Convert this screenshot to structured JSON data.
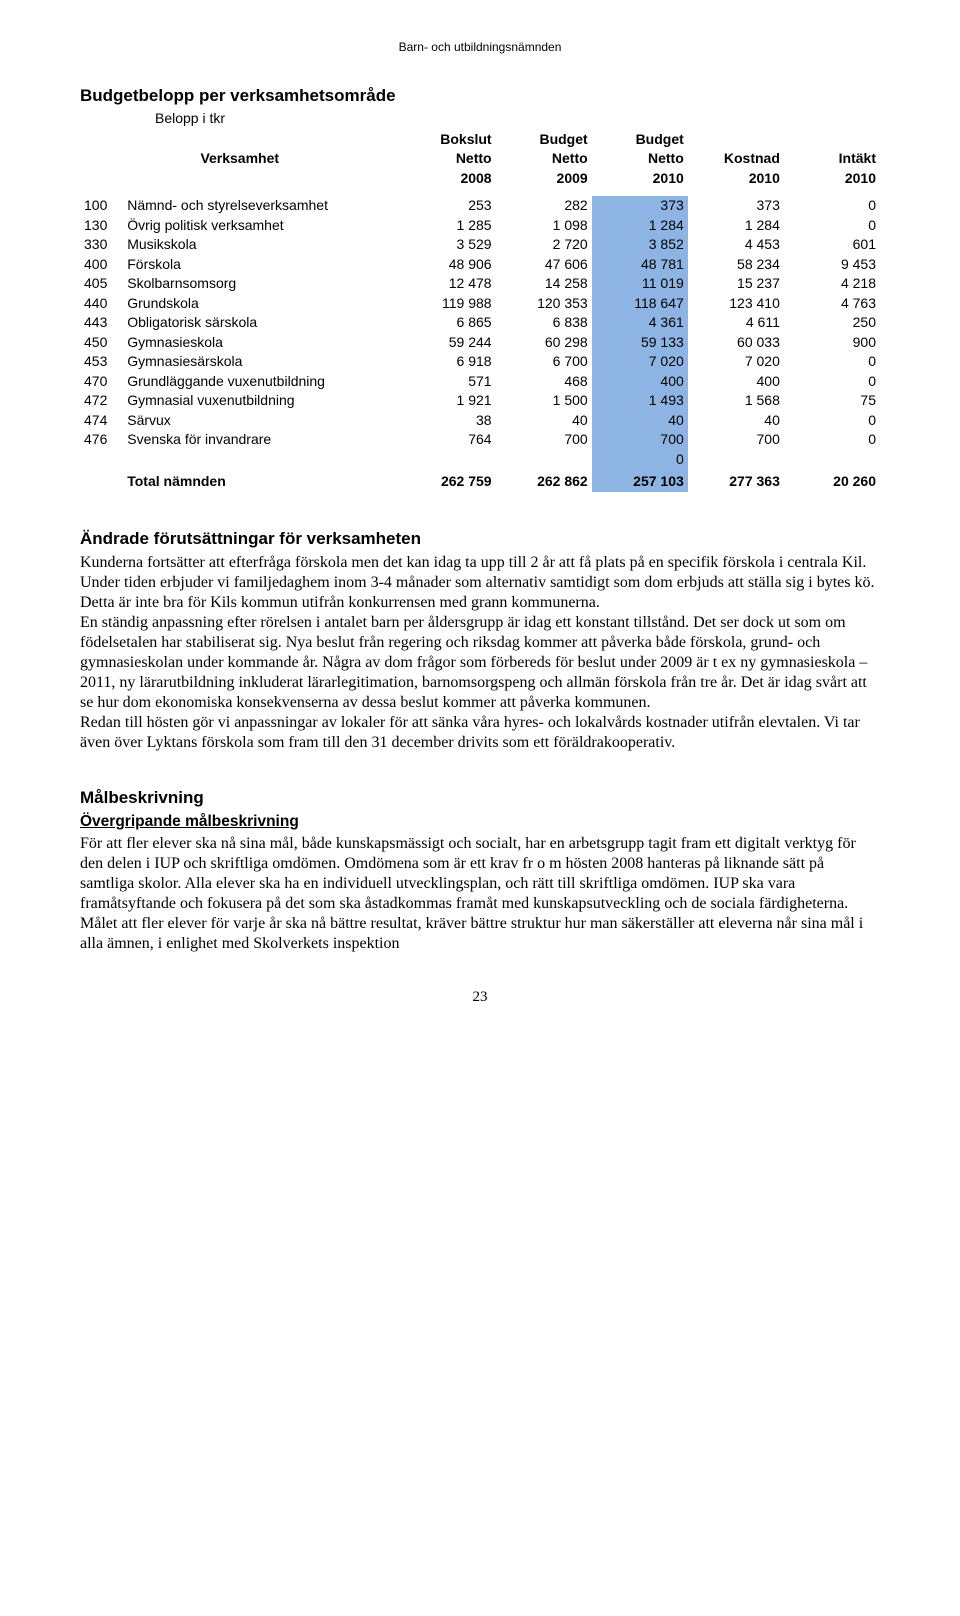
{
  "page_header": "Barn- och utbildningsnämnden",
  "budget_table": {
    "type": "table",
    "title": "Budgetbelopp per verksamhetsområde",
    "subtitle": "Belopp i tkr",
    "background_color": "#ffffff",
    "highlight_color": "#8eb4e3",
    "font_family": "Arial",
    "font_size_pt": 10.5,
    "header": {
      "row1": [
        "",
        "Bokslut",
        "Budget",
        "Budget",
        "",
        ""
      ],
      "row2": [
        "Verksamhet",
        "Netto",
        "Netto",
        "Netto",
        "Kostnad",
        "Intäkt"
      ],
      "row3": [
        "",
        "2008",
        "2009",
        "2010",
        "2010",
        "2010"
      ]
    },
    "columns": [
      "code",
      "label",
      "bokslut_netto_2008",
      "budget_netto_2009",
      "budget_netto_2010",
      "kostnad_2010",
      "intakt_2010"
    ],
    "highlight_column": "budget_netto_2010",
    "column_align": [
      "left",
      "left",
      "right",
      "right",
      "right",
      "right",
      "right"
    ],
    "rows": [
      [
        "100",
        "Nämnd- och styrelseverksamhet",
        "253",
        "282",
        "373",
        "373",
        "0"
      ],
      [
        "130",
        "Övrig politisk verksamhet",
        "1 285",
        "1 098",
        "1 284",
        "1 284",
        "0"
      ],
      [
        "330",
        "Musikskola",
        "3 529",
        "2 720",
        "3 852",
        "4 453",
        "601"
      ],
      [
        "400",
        "Förskola",
        "48 906",
        "47 606",
        "48 781",
        "58 234",
        "9 453"
      ],
      [
        "405",
        "Skolbarnsomsorg",
        "12 478",
        "14 258",
        "11 019",
        "15 237",
        "4 218"
      ],
      [
        "440",
        "Grundskola",
        "119 988",
        "120 353",
        "118 647",
        "123 410",
        "4 763"
      ],
      [
        "443",
        "Obligatorisk särskola",
        "6 865",
        "6 838",
        "4 361",
        "4 611",
        "250"
      ],
      [
        "450",
        "Gymnasieskola",
        "59 244",
        "60 298",
        "59 133",
        "60 033",
        "900"
      ],
      [
        "453",
        "Gymnasiesärskola",
        "6 918",
        "6 700",
        "7 020",
        "7 020",
        "0"
      ],
      [
        "470",
        "Grundläggande vuxenutbildning",
        "571",
        "468",
        "400",
        "400",
        "0"
      ],
      [
        "472",
        "Gymnasial vuxenutbildning",
        "1 921",
        "1 500",
        "1 493",
        "1 568",
        "75"
      ],
      [
        "474",
        "Särvux",
        "38",
        "40",
        "40",
        "40",
        "0"
      ],
      [
        "476",
        "Svenska för invandrare",
        "764",
        "700",
        "700",
        "700",
        "0"
      ]
    ],
    "filler_row": [
      "",
      "",
      "",
      "",
      "0",
      "",
      ""
    ],
    "total_row": [
      "",
      "Total nämnden",
      "262 759",
      "262 862",
      "257 103",
      "277 363",
      "20 260"
    ]
  },
  "changed_conditions": {
    "title": "Ändrade förutsättningar för verksamheten",
    "paragraphs": [
      "Kunderna fortsätter att efterfråga förskola men det kan idag ta upp till 2 år att få plats på en specifik förskola i centrala Kil. Under tiden erbjuder vi familjedaghem inom 3-4 månader som alternativ samtidigt som dom erbjuds att ställa sig i bytes kö. Detta är inte bra för Kils kommun utifrån konkurrensen med grann kommunerna.",
      "En ständig anpassning efter rörelsen i antalet barn per åldersgrupp är idag ett konstant tillstånd. Det ser dock ut som om födelsetalen har stabiliserat sig. Nya beslut från regering och riksdag kommer att påverka både förskola, grund- och gymnasieskolan under kommande år. Några av dom frågor som förbereds för beslut under 2009 är t ex ny gymnasieskola –2011, ny lärarutbildning inkluderat lärarlegitimation, barnomsorgspeng och allmän förskola från tre år. Det är idag svårt att se hur dom ekonomiska konsekvenserna av dessa beslut kommer att påverka kommunen.",
      "Redan till hösten gör vi anpassningar av lokaler för att sänka våra hyres- och lokalvårds kostnader utifrån elevtalen. Vi tar även över Lyktans förskola som fram till den 31 december drivits som ett föräldrakooperativ."
    ]
  },
  "goal_description": {
    "title": "Målbeskrivning",
    "subtitle": "Övergripande målbeskrivning",
    "paragraph": "För att fler elever ska nå sina mål, både kunskapsmässigt och socialt, har en arbetsgrupp tagit fram ett digitalt verktyg för den delen i IUP och skriftliga omdömen. Omdömena som är ett krav fr o m hösten 2008 hanteras på liknande sätt på samtliga skolor. Alla elever ska ha en individuell utvecklingsplan, och rätt till skriftliga omdömen. IUP  ska vara framåtsyftande och fokusera på det som ska åstadkommas framåt med kunskapsutveckling och de sociala färdigheterna. Målet att fler elever för varje år ska nå bättre resultat, kräver bättre struktur hur man säkerställer att eleverna når sina mål i alla ämnen, i enlighet med Skolverkets inspektion"
  },
  "page_number": "23"
}
